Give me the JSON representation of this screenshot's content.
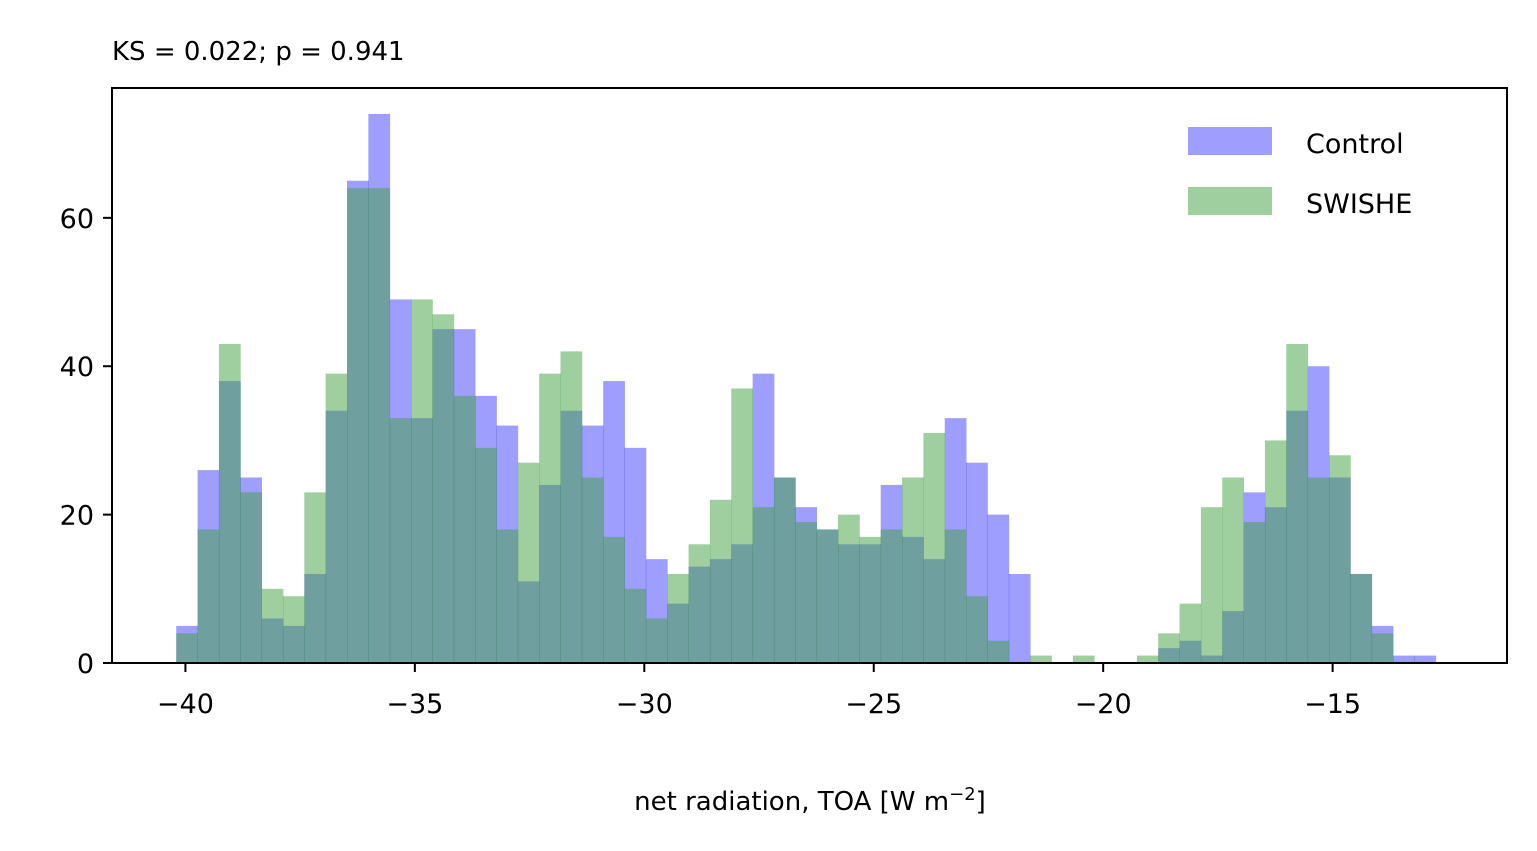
{
  "chart_data": {
    "type": "histogram",
    "title": "KS = 0.022; p = 0.941",
    "xlabel": "net radiation, TOA [W m",
    "xlabel_sup": "−2",
    "xlabel_suffix": "]",
    "ylabel": "",
    "xlim": [
      -41.6,
      -11.2
    ],
    "ylim": [
      0,
      77.5
    ],
    "xticks": [
      -40,
      -35,
      -30,
      -25,
      -20,
      -15
    ],
    "xtick_labels": [
      "−40",
      "−35",
      "−30",
      "−25",
      "−20",
      "−15"
    ],
    "yticks": [
      0,
      20,
      40,
      60
    ],
    "ytick_labels": [
      "0",
      "20",
      "40",
      "60"
    ],
    "grid": false,
    "legend_position": "top-right",
    "bin_start": -40.2,
    "bin_width": 0.4652,
    "series": [
      {
        "name": "Control",
        "color": "#0000ff",
        "alpha": 0.38,
        "values": [
          5,
          26,
          38,
          25,
          6,
          5,
          12,
          34,
          65,
          74,
          49,
          33,
          45,
          45,
          36,
          32,
          11,
          24,
          34,
          32,
          38,
          29,
          14,
          8,
          13,
          14,
          16,
          39,
          25,
          21,
          18,
          16,
          16,
          24,
          17,
          14,
          33,
          27,
          20,
          12,
          0,
          0,
          0,
          0,
          0,
          0,
          2,
          3,
          1,
          7,
          23,
          21,
          34,
          40,
          25,
          12,
          5,
          1,
          1
        ],
        "bin_edges": null
      },
      {
        "name": "SWISHE",
        "color": "#3f9f3f",
        "alpha": 0.5,
        "values": [
          4,
          18,
          43,
          23,
          10,
          9,
          23,
          39,
          64,
          64,
          33,
          49,
          47,
          36,
          29,
          18,
          27,
          39,
          42,
          25,
          17,
          10,
          6,
          12,
          16,
          22,
          37,
          21,
          25,
          19,
          18,
          20,
          17,
          18,
          25,
          31,
          18,
          9,
          3,
          0,
          1,
          0,
          1,
          0,
          0,
          1,
          4,
          8,
          21,
          25,
          19,
          30,
          43,
          25,
          28,
          12,
          4,
          0,
          0
        ]
      }
    ]
  }
}
